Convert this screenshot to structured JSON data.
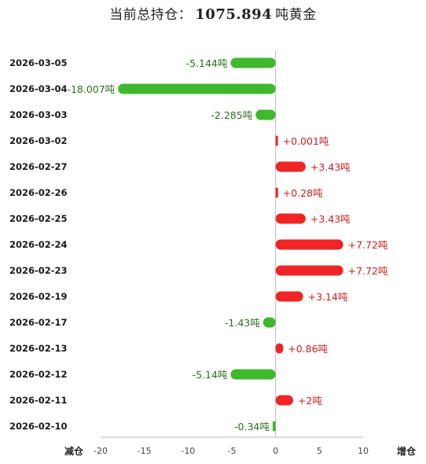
{
  "title": {
    "prefix": "当前总持仓：",
    "value": "1075.894",
    "suffix": "吨黄金"
  },
  "chart_data": {
    "type": "bar",
    "orientation": "horizontal",
    "categories": [
      "2026-03-05",
      "2026-03-04",
      "2026-03-03",
      "2026-03-02",
      "2026-02-27",
      "2026-02-26",
      "2026-02-25",
      "2026-02-24",
      "2026-02-23",
      "2026-02-19",
      "2026-02-17",
      "2026-02-13",
      "2026-02-12",
      "2026-02-11",
      "2026-02-10"
    ],
    "values": [
      -5.144,
      -18.007,
      -2.285,
      0.001,
      3.43,
      0.28,
      3.43,
      7.72,
      7.72,
      3.14,
      -1.43,
      0.86,
      -5.14,
      2,
      -0.34
    ],
    "data_labels": [
      "-5.144吨",
      "-18.007吨",
      "-2.285吨",
      "+0.001吨",
      "+3.43吨",
      "+0.28吨",
      "+3.43吨",
      "+7.72吨",
      "+7.72吨",
      "+3.14吨",
      "-1.43吨",
      "+0.86吨",
      "-5.14吨",
      "+2吨",
      "-0.34吨"
    ],
    "xlim": [
      -20,
      10
    ],
    "xticks": [
      -20,
      -15,
      -10,
      -5,
      0,
      5,
      10
    ],
    "xlabel_left": "减仓",
    "xlabel_right": "增仓",
    "legend": "none",
    "grid": false,
    "colors": {
      "positive": "#f02424",
      "negative": "#3fb82e"
    }
  }
}
